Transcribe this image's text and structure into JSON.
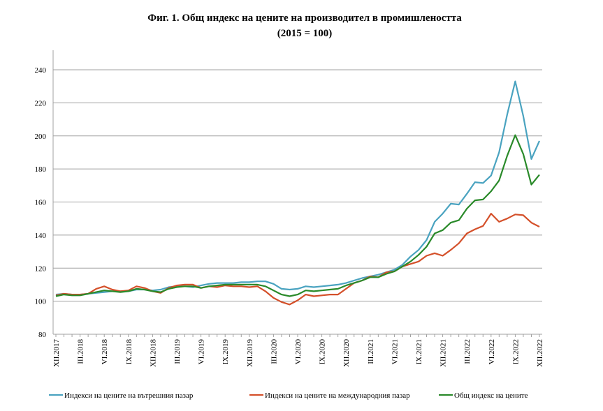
{
  "chart_data": {
    "type": "line",
    "title": "Фиг. 1. Общ индекс на цените на производител в промишлеността",
    "subtitle": "(2015 = 100)",
    "categories": [
      "XII.2017",
      null,
      null,
      "III.2018",
      null,
      null,
      "VI.2018",
      null,
      null,
      "IX.2018",
      null,
      null,
      "XII.2018",
      null,
      null,
      "III.2019",
      null,
      null,
      "VI.2019",
      null,
      null,
      "IX.2019",
      null,
      null,
      "XII.2019",
      null,
      null,
      "III.2020",
      null,
      null,
      "VI.2020",
      null,
      null,
      "IX.2020",
      null,
      null,
      "XII.2020",
      null,
      null,
      "III.2021",
      null,
      null,
      "VI.2021",
      null,
      null,
      "IX.2021",
      null,
      null,
      "XII.2021",
      null,
      null,
      "III.2022",
      null,
      null,
      "VI.2022",
      null,
      null,
      "IX.2022",
      null,
      null,
      "XII.2022"
    ],
    "series": [
      {
        "name": "Индекси на цените на вътрешния пазар",
        "color": "#4aa3c0",
        "values": [
          104,
          104.5,
          104,
          104,
          104.5,
          105,
          105.5,
          106,
          106,
          106,
          107,
          107,
          106.5,
          107,
          108.5,
          109,
          109,
          108.5,
          109.5,
          110.5,
          111,
          111,
          111,
          111.5,
          111.5,
          112,
          112,
          110.5,
          107.5,
          107,
          107.5,
          109,
          108.5,
          109,
          109.5,
          110,
          111,
          112.5,
          114,
          115,
          116,
          117.5,
          119,
          122,
          127,
          131,
          137,
          148,
          153,
          159,
          158.5,
          165,
          172,
          171.5,
          176,
          190,
          213,
          233,
          212,
          186,
          197
        ]
      },
      {
        "name": "Индекси на цените на международния пазар",
        "color": "#d4502a",
        "values": [
          103.5,
          104.5,
          104,
          104,
          104.5,
          107.5,
          109,
          107,
          106,
          106.5,
          109,
          108,
          106,
          105,
          108,
          109.5,
          110,
          110,
          108,
          109,
          108.5,
          109.5,
          109,
          109,
          108.5,
          109,
          106,
          102,
          99.5,
          98,
          100.5,
          104,
          103,
          103.5,
          104,
          104,
          107.5,
          111,
          112.5,
          115,
          114.5,
          117.5,
          118,
          121,
          122.5,
          124,
          127.5,
          129,
          127.5,
          131,
          135,
          141,
          143.5,
          145.5,
          153,
          148,
          150,
          152.5,
          152,
          147.5,
          145
        ]
      },
      {
        "name": "Общ индекс на цените",
        "color": "#2a8a2a",
        "values": [
          103,
          104,
          103.5,
          103.5,
          104.5,
          105.5,
          106.5,
          106,
          105.5,
          106,
          107.5,
          107,
          106,
          105.5,
          107.5,
          108.5,
          109,
          109,
          108,
          109,
          109.5,
          110,
          110,
          110,
          110,
          110,
          109,
          106.5,
          104,
          103,
          104,
          106.5,
          106,
          106.5,
          107,
          107.5,
          109.5,
          111,
          112.5,
          114.5,
          114.5,
          116.5,
          118,
          121,
          124,
          128,
          133,
          141,
          143,
          147.5,
          149,
          156,
          161,
          161.5,
          166.5,
          173,
          188,
          200.5,
          189,
          170.5,
          176.5
        ]
      }
    ],
    "ylim": [
      80,
      240
    ],
    "yticks": [
      80,
      100,
      120,
      140,
      160,
      180,
      200,
      220,
      240
    ],
    "grid": true
  }
}
